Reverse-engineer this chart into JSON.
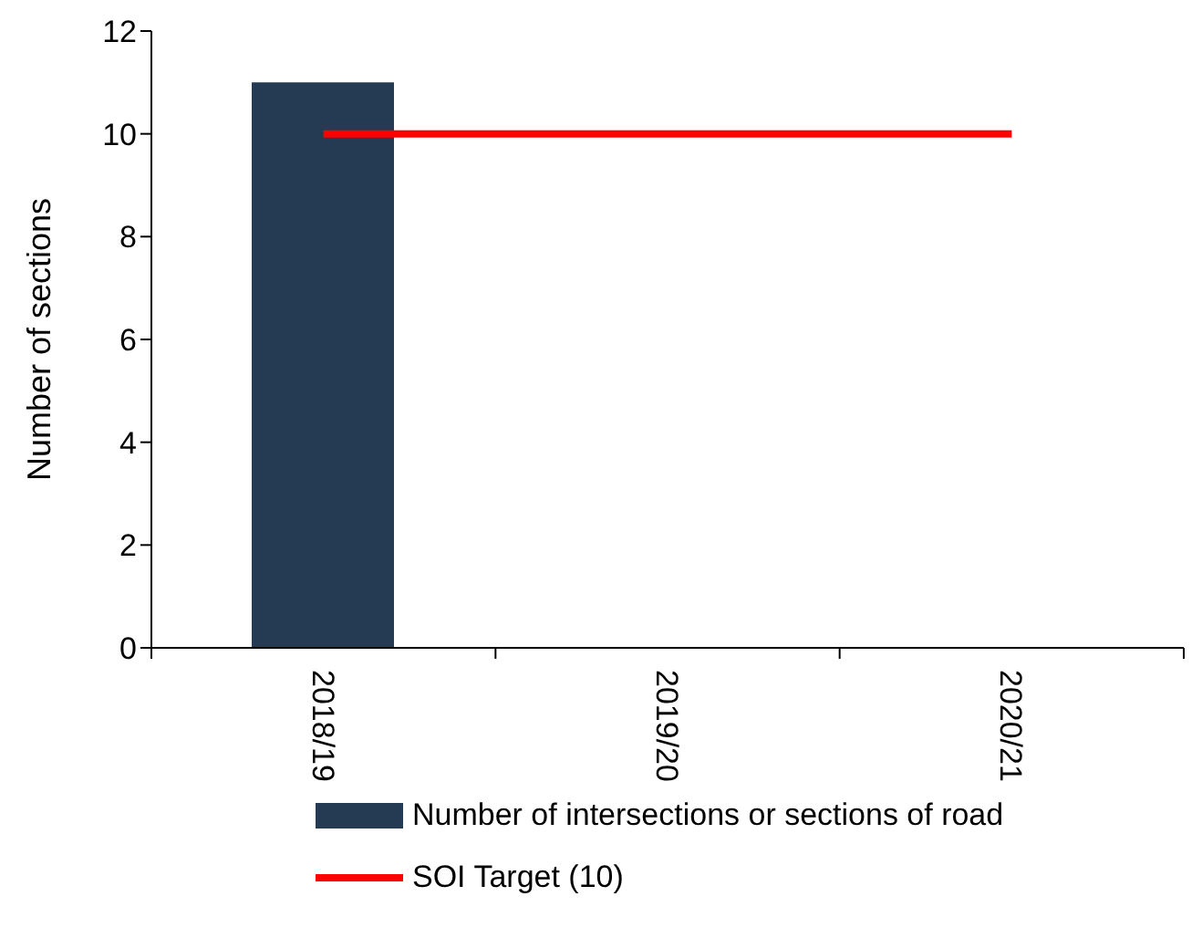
{
  "chart_data": {
    "type": "bar",
    "categories": [
      "2018/19",
      "2019/20",
      "2020/21"
    ],
    "series": [
      {
        "name": "Number of intersections or sections of road",
        "color": "#243b53",
        "values": [
          11,
          null,
          null
        ]
      },
      {
        "name": "SOI Target (10)",
        "type": "line",
        "color": "#ff0000",
        "values": [
          10,
          10,
          10
        ]
      }
    ],
    "ylabel": "Number of sections",
    "ylim": [
      0,
      12
    ],
    "yticks": [
      0,
      2,
      4,
      6,
      8,
      10,
      12
    ],
    "legend": "bottom",
    "marker": "none"
  }
}
